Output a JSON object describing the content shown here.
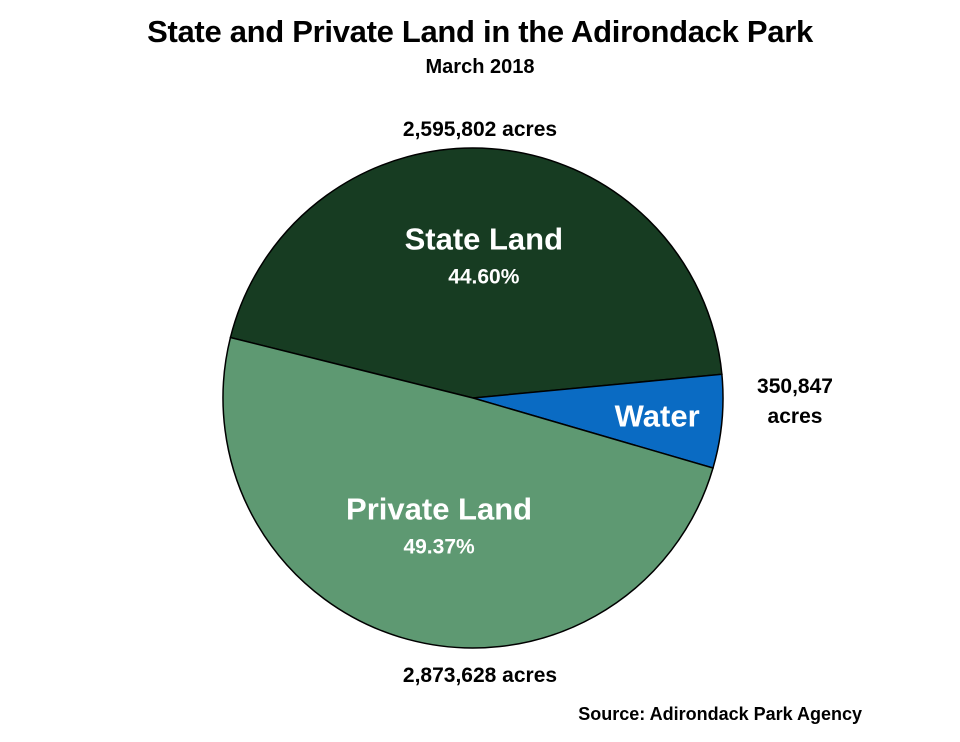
{
  "chart_data": {
    "type": "pie",
    "title": "State and Private Land in the Adirondack Park",
    "subtitle": "March 2018",
    "slices": [
      {
        "name": "State Land",
        "percent_label": "44.60%",
        "value": 2595802,
        "acres_label": "2,595,802 acres",
        "color": "#173c22"
      },
      {
        "name": "Water",
        "percent_label": "",
        "value": 350847,
        "acres_label": "350,847 acres",
        "acres_line1": "350,847",
        "acres_line2": "acres",
        "color": "#0a6bc3"
      },
      {
        "name": "Private Land",
        "percent_label": "49.37%",
        "value": 2873628,
        "acres_label": "2,873,628 acres",
        "color": "#5e9972"
      }
    ]
  },
  "source": "Source:  Adirondack Park Agency"
}
